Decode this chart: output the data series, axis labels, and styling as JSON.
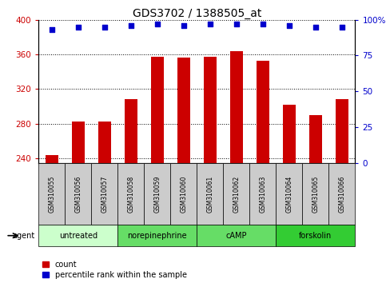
{
  "title": "GDS3702 / 1388505_at",
  "samples": [
    "GSM310055",
    "GSM310056",
    "GSM310057",
    "GSM310058",
    "GSM310059",
    "GSM310060",
    "GSM310061",
    "GSM310062",
    "GSM310063",
    "GSM310064",
    "GSM310065",
    "GSM310066"
  ],
  "bar_values": [
    244,
    283,
    283,
    308,
    357,
    356,
    357,
    364,
    353,
    302,
    290,
    308
  ],
  "percentile_values": [
    93,
    95,
    95,
    96,
    97,
    96,
    97,
    97,
    97,
    96,
    95,
    95
  ],
  "bar_color": "#cc0000",
  "percentile_color": "#0000cc",
  "ylim_left": [
    235,
    400
  ],
  "ylim_right": [
    0,
    100
  ],
  "yticks_left": [
    240,
    280,
    320,
    360,
    400
  ],
  "yticks_right": [
    0,
    25,
    50,
    75,
    100
  ],
  "agent_groups": [
    {
      "label": "untreated",
      "start": 0,
      "end": 3,
      "color": "#ccffcc"
    },
    {
      "label": "norepinephrine",
      "start": 3,
      "end": 6,
      "color": "#66ee66"
    },
    {
      "label": "cAMP",
      "start": 6,
      "end": 9,
      "color": "#66ee66"
    },
    {
      "label": "forskolin",
      "start": 9,
      "end": 12,
      "color": "#33dd33"
    }
  ],
  "agent_label": "agent",
  "legend_count_label": "count",
  "legend_percentile_label": "percentile rank within the sample",
  "bar_width": 0.5,
  "title_fontsize": 10,
  "tick_fontsize": 7.5,
  "sample_fontsize": 5.5,
  "agent_fontsize": 7
}
